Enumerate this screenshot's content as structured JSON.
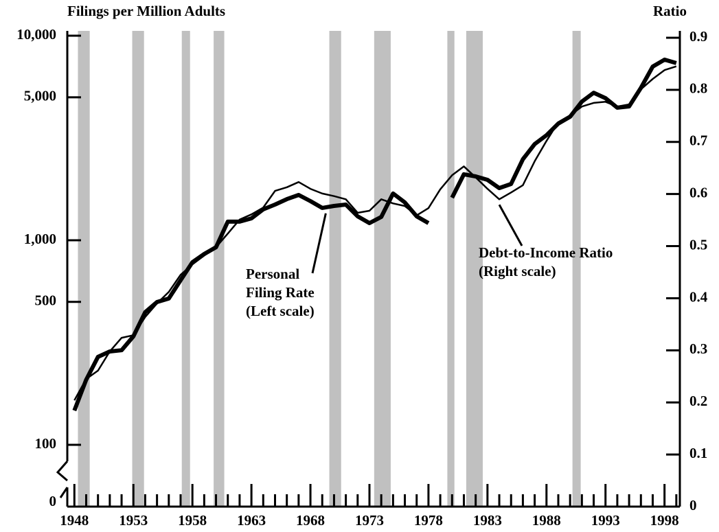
{
  "chart_data": {
    "type": "line",
    "y_axis_label": "Filings per Million Adults",
    "y2_axis_label": "Ratio",
    "x": [
      1948,
      1949,
      1950,
      1951,
      1952,
      1953,
      1954,
      1955,
      1956,
      1957,
      1958,
      1959,
      1960,
      1961,
      1962,
      1963,
      1964,
      1965,
      1966,
      1967,
      1968,
      1969,
      1970,
      1971,
      1972,
      1973,
      1974,
      1975,
      1976,
      1977,
      1978,
      1979,
      1980,
      1981,
      1982,
      1983,
      1984,
      1985,
      1986,
      1987,
      1988,
      1989,
      1990,
      1991,
      1992,
      1993,
      1994,
      1995,
      1996,
      1997,
      1998,
      1999
    ],
    "series": [
      {
        "name": "Personal Filing Rate",
        "color": "#000000",
        "axis": "y",
        "values": [
          147,
          208,
          269,
          286,
          290,
          339,
          445,
          499,
          519,
          638,
          781,
          857,
          925,
          1233,
          1233,
          1280,
          1416,
          1494,
          1589,
          1665,
          1553,
          1439,
          1472,
          1494,
          1310,
          1213,
          1300,
          1692,
          1531,
          1310,
          1213,
          null,
          1614,
          2101,
          2051,
          1974,
          1799,
          1884,
          2489,
          2951,
          3262,
          3719,
          4018,
          4764,
          5261,
          4951,
          4446,
          4511,
          5560,
          7063,
          7634,
          7345
        ]
      },
      {
        "name": "Debt-to-Income Ratio",
        "color": "#000000",
        "axis": "y2",
        "values": [
          0.204,
          0.245,
          0.261,
          0.298,
          0.324,
          0.329,
          0.364,
          0.39,
          0.412,
          0.445,
          0.465,
          0.482,
          0.498,
          0.524,
          0.551,
          0.561,
          0.574,
          0.606,
          0.613,
          0.623,
          0.61,
          0.601,
          0.596,
          0.59,
          0.564,
          0.568,
          0.59,
          0.582,
          0.577,
          0.559,
          0.573,
          0.609,
          0.636,
          0.653,
          0.632,
          0.61,
          0.59,
          0.603,
          0.617,
          0.663,
          0.702,
          0.738,
          0.751,
          0.768,
          0.775,
          0.777,
          0.768,
          0.772,
          0.801,
          0.821,
          0.838,
          0.845
        ]
      }
    ],
    "annotations": [
      {
        "lines": [
          "Personal",
          "Filing Rate",
          "(Left scale)"
        ],
        "x": 1969.3,
        "y": 1440
      },
      {
        "lines": [
          "Debt-to-Income Ratio",
          "(Right scale)"
        ],
        "x": 1984,
        "y": 0.59
      }
    ],
    "recessions": [
      [
        1948.3,
        1949.3
      ],
      [
        1952.9,
        1953.9
      ],
      [
        1957.1,
        1957.8
      ],
      [
        1959.8,
        1960.7
      ],
      [
        1969.6,
        1970.6
      ],
      [
        1973.4,
        1974.8
      ],
      [
        1979.6,
        1980.2
      ],
      [
        1981.2,
        1982.6
      ],
      [
        1990.2,
        1990.9
      ]
    ],
    "recession_color": "#c0c0c0",
    "xlim": [
      1947.4,
      1999.3
    ],
    "xticks": [
      1948,
      1953,
      1958,
      1963,
      1968,
      1973,
      1978,
      1983,
      1988,
      1993,
      1998
    ],
    "xminor_step": 1,
    "ylim": [
      100,
      10000
    ],
    "yscale": "log",
    "axis_break": true,
    "yticks": [
      0,
      100,
      500,
      {
        "value": 1000,
        "label": "1,000"
      },
      {
        "value": 5000,
        "label": "5,000"
      },
      {
        "value": 10000,
        "label": "10,000"
      }
    ],
    "y2lim": [
      0,
      0.9
    ],
    "y2ticks": [
      0,
      0.1,
      0.2,
      0.3,
      0.4,
      0.5,
      0.6,
      0.7,
      0.8,
      0.9
    ],
    "grid": false
  }
}
